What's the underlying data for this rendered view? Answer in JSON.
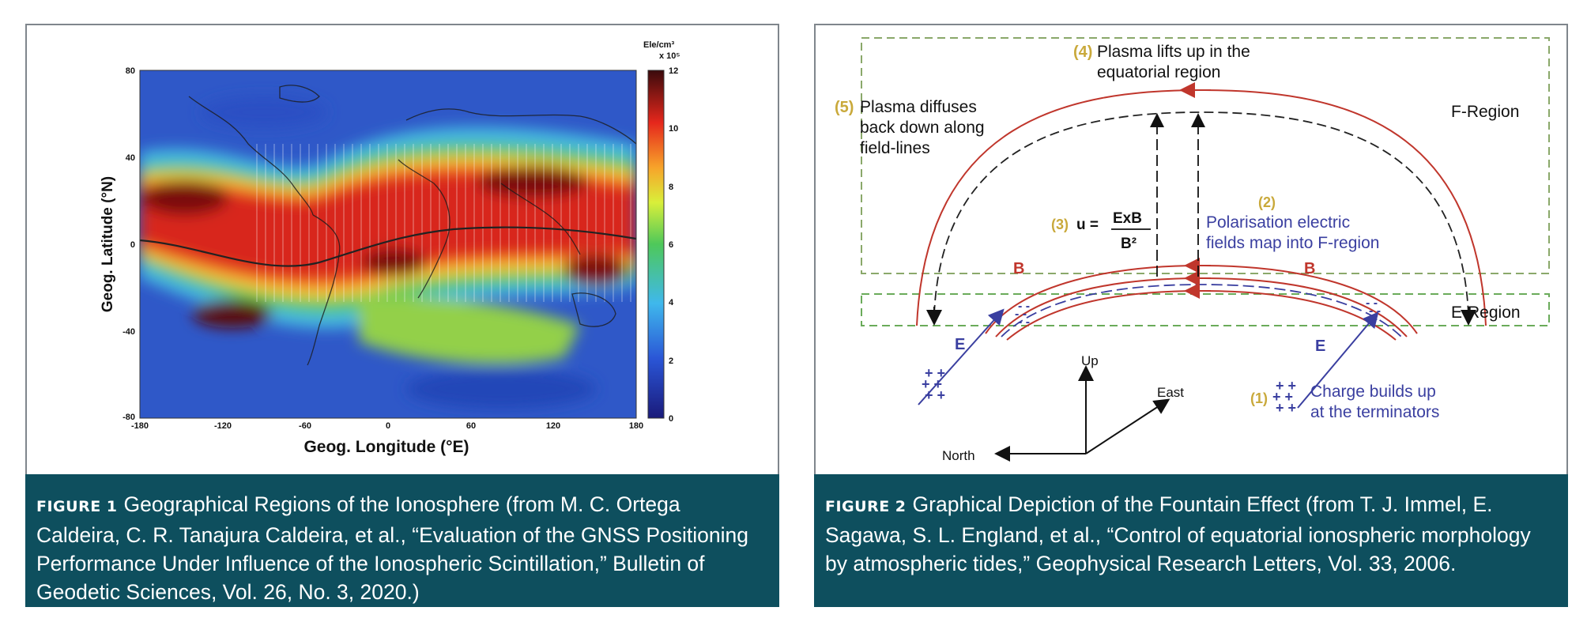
{
  "figure1": {
    "ylabel": "Geog. Latitude (°N)",
    "xlabel": "Geog. Longitude (°E)",
    "colorbar_unit": "Ele/cm³",
    "colorbar_scale": "x 10⁵",
    "caption_label": "FIGURE 1",
    "caption_text": "Geographical Regions of the Ionosphere (from M. C. Ortega Caldeira, C. R. Tanajura Caldeira, et al., “Evaluation of the GNSS Positioning Performance Under Influence of the Ionospheric Scintillation,” Bulletin of Geodetic Sciences, Vol. 26, No. 3, 2020.)"
  },
  "chart_data": {
    "type": "heatmap",
    "title": "",
    "xlabel": "Geog. Longitude (°E)",
    "ylabel": "Geog. Latitude (°N)",
    "xlim": [
      -180,
      180
    ],
    "ylim": [
      -80,
      80
    ],
    "x_ticks": [
      "-180",
      "-120",
      "-60",
      "0",
      "60",
      "120",
      "180"
    ],
    "y_ticks": [
      "80",
      "40",
      "0",
      "-40",
      "-80"
    ],
    "colorbar": {
      "label": "Ele/cm³ x 10⁵",
      "range": [
        0,
        12
      ],
      "ticks": [
        "12",
        "10",
        "8",
        "6",
        "4",
        "2",
        "0"
      ]
    }
  },
  "figure2": {
    "step4_num": "(4)",
    "step4_text1": "Plasma lifts up in the",
    "step4_text2": "equatorial region",
    "step5_num": "(5)",
    "step5_text1": "Plasma diffuses",
    "step5_text2": "back down along",
    "step5_text3": "field-lines",
    "f_region": "F-Region",
    "e_region": "E-Region",
    "step3_num": "(3)",
    "step3_eq_lhs": "u =",
    "step3_eq_num": "ExB",
    "step3_eq_den": "B²",
    "step2_num": "(2)",
    "step2_text1": "Polarisation electric",
    "step2_text2": "fields map into F-region",
    "b_left": "B",
    "b_right": "B",
    "e_left": "E",
    "e_right": "E",
    "axis_up": "Up",
    "axis_east": "East",
    "axis_north": "North",
    "step1_num": "(1)",
    "step1_text1": "Charge builds up",
    "step1_text2": "at the terminators",
    "caption_label": "FIGURE 2",
    "caption_text": "Graphical Depiction of the Fountain Effect (from T. J. Immel, E. Sagawa, S. L. England, et al., “Control of equatorial ionospheric morphology by atmospheric tides,” Geophysical Research Letters, Vol. 33, 2006."
  }
}
